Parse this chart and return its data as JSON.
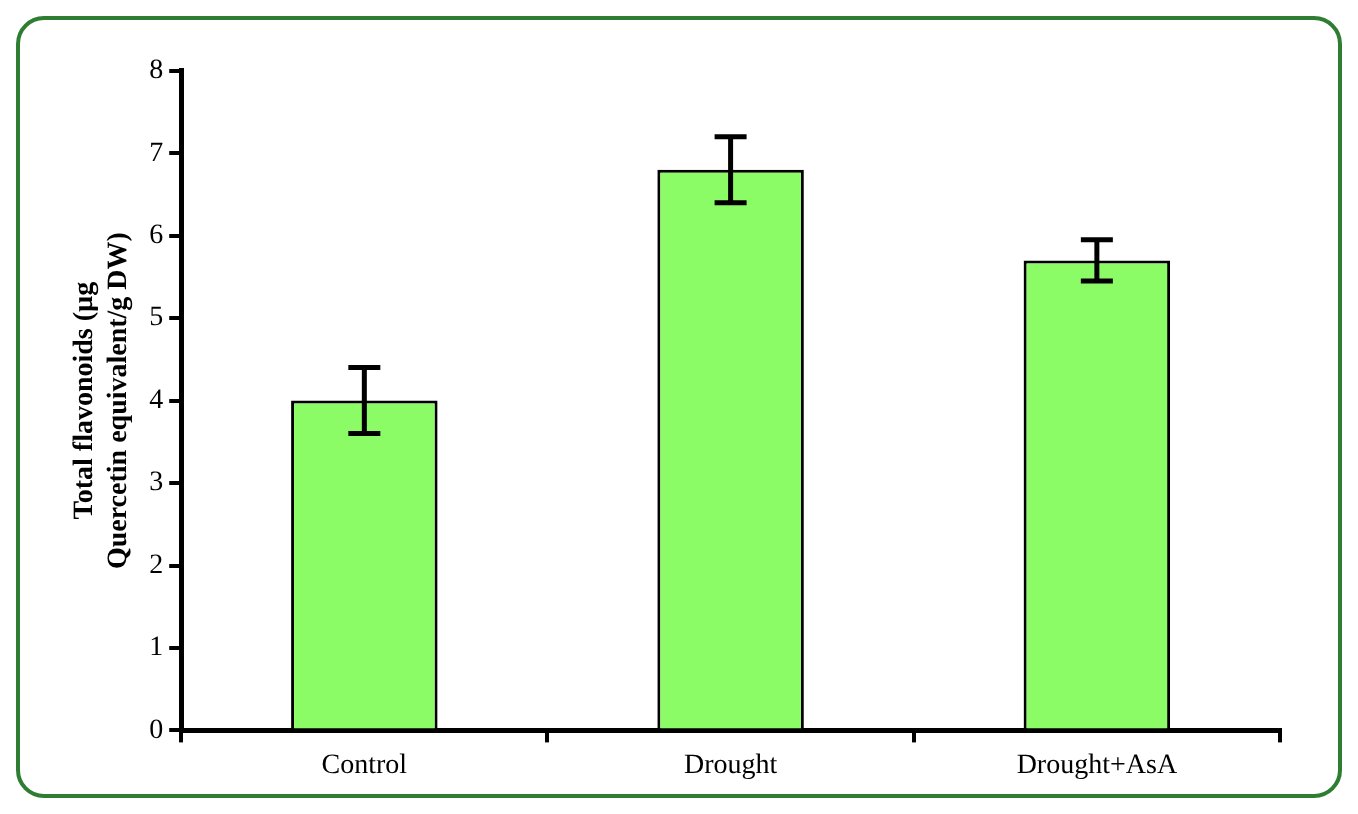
{
  "chart_data": {
    "type": "bar",
    "ylabel": "Total flavonoids (µg Quercetin equivalent/g DW)",
    "categories": [
      "Control",
      "Drought",
      "Drought+AsA"
    ],
    "values": [
      4.0,
      6.8,
      5.7
    ],
    "errors": [
      0.4,
      0.4,
      0.25
    ],
    "color": "#8cfc66",
    "ylim": [
      0,
      8
    ],
    "yticks": [
      0,
      1,
      2,
      3,
      4,
      5,
      6,
      7,
      8
    ],
    "grid": false,
    "legend": false
  }
}
